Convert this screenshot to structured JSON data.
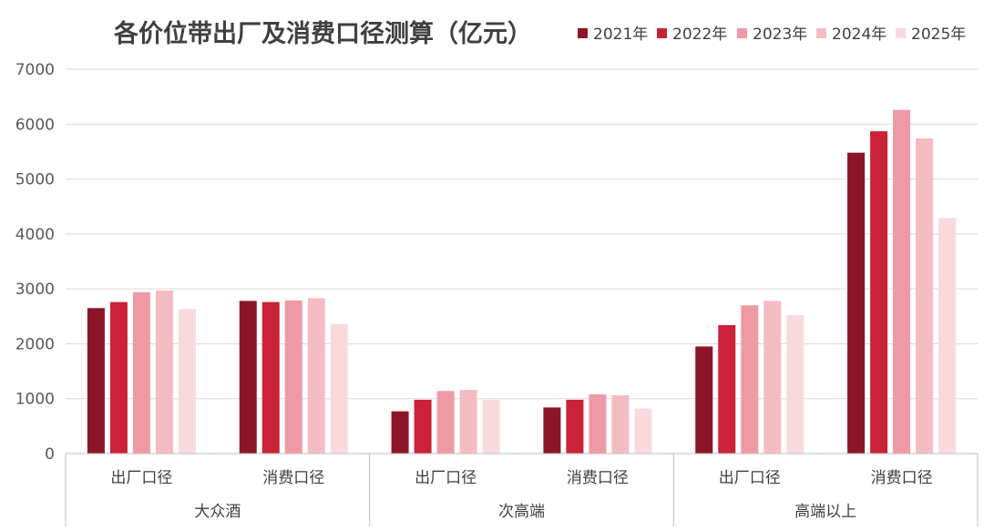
{
  "chart_data": {
    "type": "bar",
    "title": "各价位带出厂及消费口径测算（亿元）",
    "groups": [
      {
        "name": "大众酒",
        "categories": [
          "出厂口径",
          "消费口径"
        ]
      },
      {
        "name": "次高端",
        "categories": [
          "出厂口径",
          "消费口径"
        ]
      },
      {
        "name": "高端以上",
        "categories": [
          "出厂口径",
          "消费口径"
        ]
      }
    ],
    "series": [
      {
        "name": "2021年",
        "color": "#8b1526",
        "values": [
          2650,
          2780,
          770,
          840,
          1950,
          5480
        ]
      },
      {
        "name": "2022年",
        "color": "#cb2237",
        "values": [
          2760,
          2760,
          980,
          980,
          2340,
          5870
        ]
      },
      {
        "name": "2023年",
        "color": "#ee9aa4",
        "values": [
          2940,
          2790,
          1140,
          1080,
          2700,
          6260
        ]
      },
      {
        "name": "2024年",
        "color": "#f4bcc2",
        "values": [
          2970,
          2830,
          1160,
          1060,
          2780,
          5740
        ]
      },
      {
        "name": "2025年",
        "color": "#fadadd",
        "values": [
          2630,
          2360,
          980,
          820,
          2520,
          4290
        ]
      }
    ],
    "yaxis": {
      "min": 0,
      "max": 7000,
      "step": 1000,
      "ticks": [
        "0",
        "1000",
        "2000",
        "3000",
        "4000",
        "5000",
        "6000",
        "7000"
      ]
    },
    "grid": true,
    "legend": "top-right"
  }
}
